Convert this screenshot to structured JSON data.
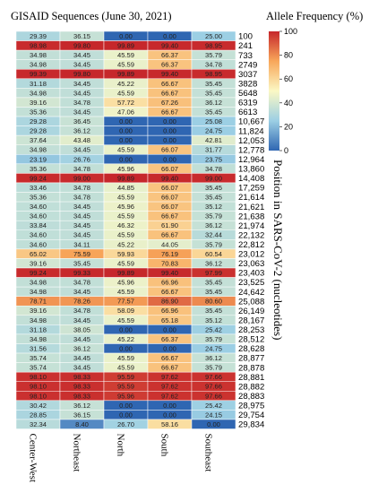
{
  "chart_data": {
    "type": "heatmap",
    "title": "GISAID Sequences (June 30, 2021)",
    "legend_title": "Allele Frequency (%)",
    "ylabel": "Position in SARS-CoV-2 (nucleotides)",
    "colorbar": {
      "min": 0,
      "max": 100,
      "ticks": [
        0,
        20,
        40,
        60,
        80,
        100
      ]
    },
    "x": [
      "Center-West",
      "Northeast",
      "North",
      "South",
      "Southeast"
    ],
    "positions": [
      "100",
      "241",
      "733",
      "2749",
      "3037",
      "3828",
      "5648",
      "6319",
      "6613",
      "10,667",
      "11,824",
      "12,053",
      "12,778",
      "12,964",
      "13,860",
      "14,408",
      "17,259",
      "21,614",
      "21,621",
      "21,638",
      "21,974",
      "22,132",
      "22,812",
      "23,012",
      "23,063",
      "23,403",
      "23,525",
      "24,642",
      "25,088",
      "26,149",
      "28,167",
      "28,253",
      "28,512",
      "28,628",
      "28,877",
      "28,878",
      "28,881",
      "28,882",
      "28,883",
      "28,975",
      "29,754",
      "29,834"
    ],
    "values": [
      [
        "29.39",
        "36.15",
        "0.00",
        "0.00",
        "25.00"
      ],
      [
        "98.98",
        "99.80",
        "99.89",
        "99.40",
        "98.95"
      ],
      [
        "34.98",
        "34.45",
        "45.59",
        "66.37",
        "35.79"
      ],
      [
        "34.98",
        "34.45",
        "45.59",
        "66.37",
        "34.78"
      ],
      [
        "99.39",
        "99.80",
        "99.89",
        "99.40",
        "98.95"
      ],
      [
        "31.18",
        "34.45",
        "45.22",
        "66.67",
        "35.45"
      ],
      [
        "34.98",
        "34.45",
        "45.59",
        "66.67",
        "35.45"
      ],
      [
        "39.16",
        "34.78",
        "57.72",
        "67.26",
        "36.12"
      ],
      [
        "35.36",
        "34.45",
        "47.06",
        "66.67",
        "35.45"
      ],
      [
        "29.28",
        "36.45",
        "0.00",
        "0.00",
        "25.08"
      ],
      [
        "29.28",
        "36.12",
        "0.00",
        "0.00",
        "24.75"
      ],
      [
        "37.64",
        "43.48",
        "0.00",
        "0.00",
        "42.81"
      ],
      [
        "34.98",
        "34.45",
        "45.59",
        "66.07",
        "31.77"
      ],
      [
        "23.19",
        "26.76",
        "0.00",
        "0.00",
        "23.75"
      ],
      [
        "35.36",
        "34.78",
        "45.96",
        "66.07",
        "34.78"
      ],
      [
        "99.24",
        "99.00",
        "99.89",
        "99.40",
        "99.00"
      ],
      [
        "33.46",
        "34.78",
        "44.85",
        "66.07",
        "35.45"
      ],
      [
        "35.36",
        "34.78",
        "45.59",
        "66.07",
        "35.45"
      ],
      [
        "34.60",
        "34.45",
        "45.96",
        "66.07",
        "35.12"
      ],
      [
        "34.60",
        "34.45",
        "45.59",
        "66.67",
        "35.79"
      ],
      [
        "33.84",
        "34.45",
        "46.32",
        "61.90",
        "36.12"
      ],
      [
        "34.60",
        "34.45",
        "45.59",
        "66.67",
        "32.44"
      ],
      [
        "34.60",
        "34.11",
        "45.22",
        "44.05",
        "35.79"
      ],
      [
        "65.02",
        "75.59",
        "59.93",
        "76.19",
        "60.54"
      ],
      [
        "39.16",
        "35.45",
        "45.59",
        "70.83",
        "36.12"
      ],
      [
        "99.24",
        "99.33",
        "99.89",
        "99.40",
        "97.99"
      ],
      [
        "34.98",
        "34.78",
        "45.96",
        "66.96",
        "35.45"
      ],
      [
        "34.98",
        "34.45",
        "45.59",
        "66.67",
        "35.45"
      ],
      [
        "78.71",
        "78.26",
        "77.57",
        "86.90",
        "80.60"
      ],
      [
        "39.16",
        "34.78",
        "58.09",
        "66.96",
        "35.45"
      ],
      [
        "34.98",
        "34.45",
        "45.59",
        "65.18",
        "35.12"
      ],
      [
        "31.18",
        "38.05",
        "0.00",
        "0.00",
        "25.42"
      ],
      [
        "34.98",
        "34.45",
        "45.22",
        "66.37",
        "35.79"
      ],
      [
        "31.56",
        "36.12",
        "0.00",
        "0.00",
        "24.75"
      ],
      [
        "35.74",
        "34.45",
        "45.59",
        "66.67",
        "36.12"
      ],
      [
        "35.74",
        "34.45",
        "45.59",
        "66.67",
        "35.79"
      ],
      [
        "98.10",
        "98.33",
        "95.59",
        "97.62",
        "97.66"
      ],
      [
        "98.10",
        "98.33",
        "95.59",
        "97.62",
        "97.66"
      ],
      [
        "98.10",
        "98.33",
        "95.96",
        "97.62",
        "97.66"
      ],
      [
        "30.42",
        "36.12",
        "0.00",
        "0.00",
        "25.42"
      ],
      [
        "28.85",
        "36.15",
        "0.00",
        "0.00",
        "24.15"
      ],
      [
        "32.34",
        "8.40",
        "26.70",
        "58.16",
        "0.00"
      ]
    ]
  }
}
